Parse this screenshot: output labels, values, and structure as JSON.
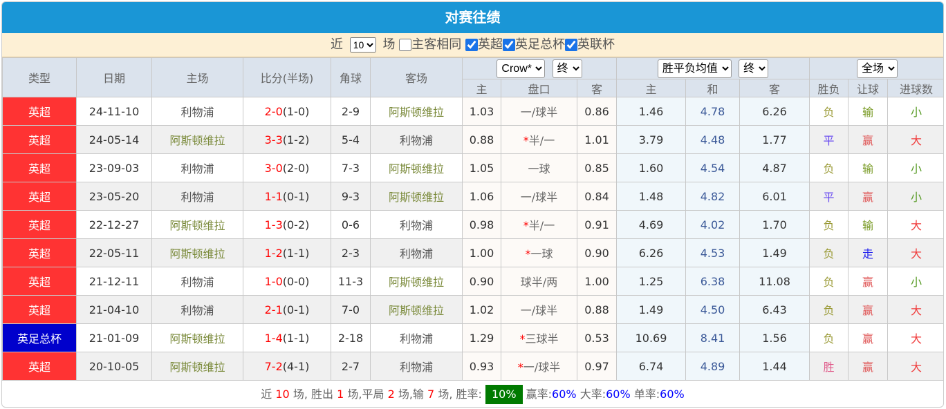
{
  "title": "对赛往绩",
  "filter": {
    "near_label": "近",
    "count_value": "10",
    "games_label": "场",
    "same_home_label": "主客相同",
    "same_home_checked": false,
    "leagues": [
      {
        "label": "英超",
        "checked": true
      },
      {
        "label": "英足总杯",
        "checked": true
      },
      {
        "label": "英联杯",
        "checked": true
      }
    ]
  },
  "headers": {
    "type": "类型",
    "date": "日期",
    "home": "主场",
    "score": "比分(半场)",
    "corner": "角球",
    "away": "客场",
    "company_select": "Crow*",
    "ah_time_select": "终",
    "eu_select": "胜平负均值",
    "eu_time_select": "终",
    "period_select": "全场",
    "ah_home": "主",
    "ah_line": "盘口",
    "ah_away": "客",
    "eu_home": "主",
    "eu_draw": "和",
    "eu_away": "客",
    "res_wl": "胜负",
    "res_ah": "让球",
    "res_ou": "进球数"
  },
  "colors": {
    "title_bg": "#1a96d6",
    "premier_league": "#ff3333",
    "fa_cup": "#0000cc",
    "win_rate_bg": "#007a00"
  },
  "rows": [
    {
      "type": "英超",
      "date": "24-11-10",
      "home": "利物浦",
      "ft": "2-0",
      "ht": "(1-0)",
      "corner": "2-9",
      "away": "阿斯顿维拉",
      "ah_h": "1.03",
      "star": "",
      "line": "一/球半",
      "ah_a": "0.86",
      "eu_h": "1.46",
      "eu_d": "4.78",
      "eu_a": "6.26",
      "wl": "负",
      "ahr": "输",
      "ou": "小"
    },
    {
      "type": "英超",
      "date": "24-05-14",
      "home": "阿斯顿维拉",
      "ft": "3-3",
      "ht": "(1-2)",
      "corner": "5-4",
      "away": "利物浦",
      "ah_h": "0.88",
      "star": "*",
      "line": "半/一",
      "ah_a": "1.01",
      "eu_h": "3.79",
      "eu_d": "4.48",
      "eu_a": "1.77",
      "wl": "平",
      "ahr": "赢",
      "ou": "大"
    },
    {
      "type": "英超",
      "date": "23-09-03",
      "home": "利物浦",
      "ft": "3-0",
      "ht": "(2-0)",
      "corner": "7-3",
      "away": "阿斯顿维拉",
      "ah_h": "1.05",
      "star": "",
      "line": "一球",
      "ah_a": "0.85",
      "eu_h": "1.60",
      "eu_d": "4.54",
      "eu_a": "4.87",
      "wl": "负",
      "ahr": "输",
      "ou": "小"
    },
    {
      "type": "英超",
      "date": "23-05-20",
      "home": "利物浦",
      "ft": "1-1",
      "ht": "(0-1)",
      "corner": "9-3",
      "away": "阿斯顿维拉",
      "ah_h": "1.06",
      "star": "",
      "line": "一/球半",
      "ah_a": "0.84",
      "eu_h": "1.48",
      "eu_d": "4.82",
      "eu_a": "6.01",
      "wl": "平",
      "ahr": "赢",
      "ou": "小"
    },
    {
      "type": "英超",
      "date": "22-12-27",
      "home": "阿斯顿维拉",
      "ft": "1-3",
      "ht": "(0-2)",
      "corner": "0-6",
      "away": "利物浦",
      "ah_h": "0.98",
      "star": "*",
      "line": "半/一",
      "ah_a": "0.91",
      "eu_h": "4.69",
      "eu_d": "4.02",
      "eu_a": "1.70",
      "wl": "负",
      "ahr": "输",
      "ou": "大"
    },
    {
      "type": "英超",
      "date": "22-05-11",
      "home": "阿斯顿维拉",
      "ft": "1-2",
      "ht": "(1-1)",
      "corner": "2-3",
      "away": "利物浦",
      "ah_h": "1.00",
      "star": "*",
      "line": "一球",
      "ah_a": "0.90",
      "eu_h": "6.26",
      "eu_d": "4.53",
      "eu_a": "1.49",
      "wl": "负",
      "ahr": "走",
      "ou": "大"
    },
    {
      "type": "英超",
      "date": "21-12-11",
      "home": "利物浦",
      "ft": "1-0",
      "ht": "(0-0)",
      "corner": "11-3",
      "away": "阿斯顿维拉",
      "ah_h": "0.90",
      "star": "",
      "line": "球半/两",
      "ah_a": "1.00",
      "eu_h": "1.25",
      "eu_d": "6.38",
      "eu_a": "11.08",
      "wl": "负",
      "ahr": "赢",
      "ou": "小"
    },
    {
      "type": "英超",
      "date": "21-04-10",
      "home": "利物浦",
      "ft": "2-1",
      "ht": "(0-1)",
      "corner": "7-0",
      "away": "阿斯顿维拉",
      "ah_h": "1.02",
      "star": "",
      "line": "一/球半",
      "ah_a": "0.88",
      "eu_h": "1.49",
      "eu_d": "4.50",
      "eu_a": "6.43",
      "wl": "负",
      "ahr": "赢",
      "ou": "大"
    },
    {
      "type": "英足总杯",
      "date": "21-01-09",
      "home": "阿斯顿维拉",
      "ft": "1-4",
      "ht": "(1-1)",
      "corner": "2-18",
      "away": "利物浦",
      "ah_h": "1.29",
      "star": "*",
      "line": "三球半",
      "ah_a": "0.53",
      "eu_h": "10.69",
      "eu_d": "8.41",
      "eu_a": "1.56",
      "wl": "负",
      "ahr": "赢",
      "ou": "大"
    },
    {
      "type": "英超",
      "date": "20-10-05",
      "home": "阿斯顿维拉",
      "ft": "7-2",
      "ht": "(4-1)",
      "corner": "2-7",
      "away": "利物浦",
      "ah_h": "0.93",
      "star": "*",
      "line": "一/球半",
      "ah_a": "0.97",
      "eu_h": "6.74",
      "eu_d": "4.89",
      "eu_a": "1.44",
      "wl": "胜",
      "ahr": "赢",
      "ou": "大"
    }
  ],
  "footer": {
    "t1": "近",
    "games": "10",
    "t2": "场, 胜出",
    "wins": "1",
    "t3": "场,平局",
    "draws": "2",
    "t4": "场,输",
    "losses": "7",
    "t5": "场, 胜率:",
    "win_rate": "10%",
    "t6": "赢率:",
    "ah_rate": "60%",
    "t7": "大率:",
    "over_rate": "60%",
    "t8": "单率:",
    "odd_rate": "60%"
  }
}
